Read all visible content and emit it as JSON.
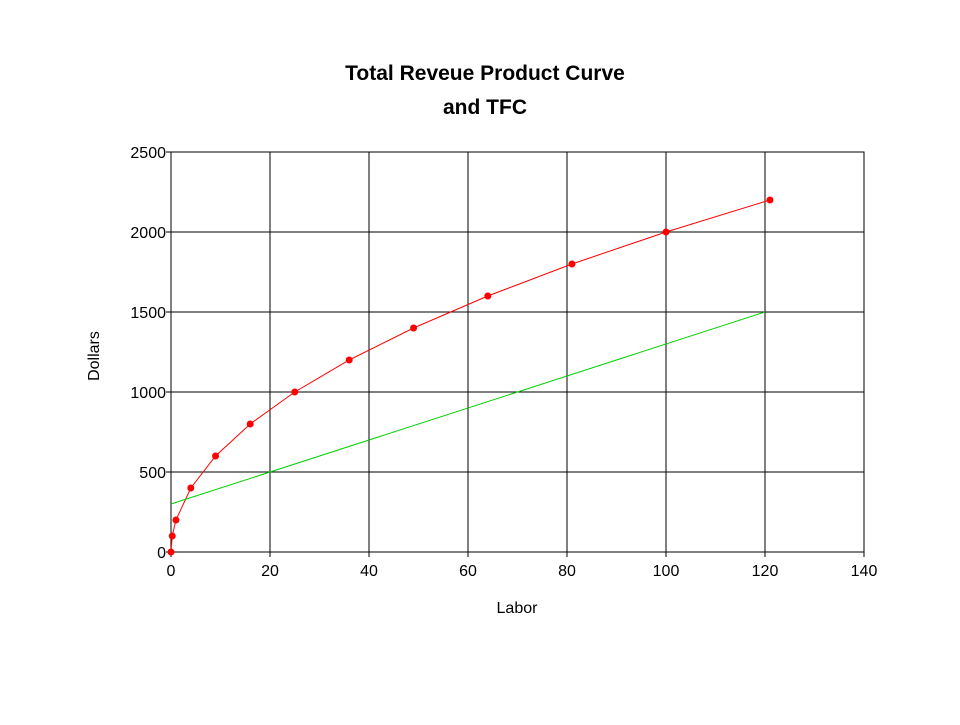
{
  "chart_data": {
    "type": "line",
    "title": [
      "Total Reveue Product Curve",
      "and TFC"
    ],
    "xlabel": "Labor",
    "ylabel": "Dollars",
    "xlim": [
      0,
      140
    ],
    "ylim": [
      0,
      2500
    ],
    "xticks": [
      0,
      20,
      40,
      60,
      80,
      100,
      120,
      140
    ],
    "yticks": [
      0,
      500,
      1000,
      1500,
      2000,
      2500
    ],
    "grid": true,
    "legend": "none",
    "series": [
      {
        "color": "#ff0000",
        "markers": true,
        "points": [
          [
            0,
            0
          ],
          [
            0.25,
            100
          ],
          [
            1,
            200
          ],
          [
            4,
            400
          ],
          [
            9,
            600
          ],
          [
            16,
            800
          ],
          [
            25,
            1000
          ],
          [
            36,
            1200
          ],
          [
            49,
            1400
          ],
          [
            64,
            1600
          ],
          [
            81,
            1800
          ],
          [
            100,
            2000
          ],
          [
            121,
            2200
          ]
        ]
      },
      {
        "color": "#00d000",
        "markers": false,
        "points": [
          [
            0,
            300
          ],
          [
            120,
            1500
          ]
        ]
      }
    ]
  }
}
